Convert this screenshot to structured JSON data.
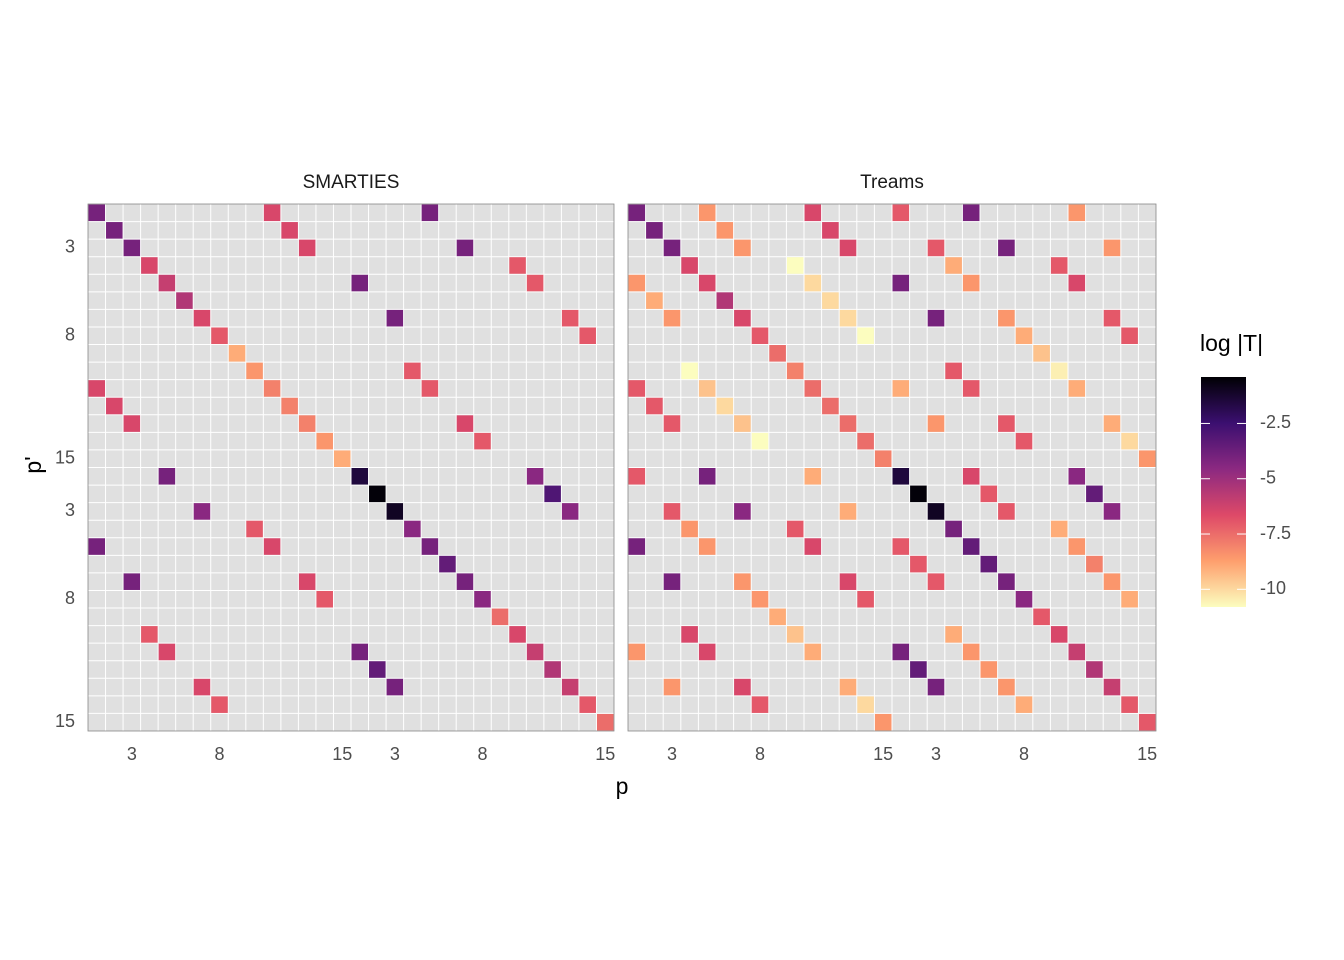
{
  "chart_data": {
    "type": "heatmap",
    "xlabel": "p",
    "ylabel": "p'",
    "legend_title": "log |T|",
    "categories": [
      null,
      null,
      "3",
      null,
      null,
      null,
      null,
      "8",
      null,
      null,
      null,
      null,
      null,
      null,
      "15",
      null,
      null,
      "3",
      null,
      null,
      null,
      null,
      "8",
      null,
      null,
      null,
      null,
      null,
      null,
      "15"
    ],
    "colormap": [
      "#fcfdbf",
      "#fe9f6d",
      "#de4968",
      "#8c2981",
      "#3b0f70",
      "#000004"
    ],
    "clim": [
      -10.8,
      -0.4
    ],
    "cticks": [
      -2.5,
      -5.0,
      -7.5,
      -10.0
    ],
    "panels": [
      {
        "title": "SMARTIES",
        "cells": [
          [
            1,
            1,
            -4
          ],
          [
            1,
            11,
            -6.5
          ],
          [
            1,
            20,
            -4
          ],
          [
            2,
            2,
            -4
          ],
          [
            2,
            12,
            -6.5
          ],
          [
            3,
            3,
            -4
          ],
          [
            3,
            13,
            -6.5
          ],
          [
            3,
            22,
            -4
          ],
          [
            4,
            4,
            -6.5
          ],
          [
            4,
            25,
            -7
          ],
          [
            5,
            5,
            -6
          ],
          [
            5,
            16,
            -4
          ],
          [
            5,
            26,
            -7
          ],
          [
            6,
            6,
            -5.5
          ],
          [
            7,
            7,
            -6.5
          ],
          [
            7,
            18,
            -4
          ],
          [
            7,
            28,
            -7
          ],
          [
            8,
            8,
            -7
          ],
          [
            8,
            29,
            -7
          ],
          [
            9,
            9,
            -9
          ],
          [
            10,
            10,
            -8.5
          ],
          [
            10,
            19,
            -7
          ],
          [
            11,
            1,
            -6.5
          ],
          [
            11,
            11,
            -8
          ],
          [
            11,
            20,
            -7
          ],
          [
            12,
            2,
            -6.5
          ],
          [
            12,
            12,
            -8
          ],
          [
            13,
            3,
            -6.5
          ],
          [
            13,
            13,
            -8
          ],
          [
            13,
            22,
            -6.5
          ],
          [
            14,
            14,
            -8.5
          ],
          [
            14,
            23,
            -7
          ],
          [
            15,
            15,
            -9
          ],
          [
            16,
            5,
            -4
          ],
          [
            16,
            16,
            -1.5
          ],
          [
            16,
            26,
            -4.5
          ],
          [
            17,
            17,
            -0.5
          ],
          [
            17,
            27,
            -3
          ],
          [
            18,
            7,
            -4.5
          ],
          [
            18,
            18,
            -1
          ],
          [
            18,
            28,
            -4.5
          ],
          [
            19,
            10,
            -7
          ],
          [
            19,
            19,
            -4.5
          ],
          [
            20,
            1,
            -4
          ],
          [
            20,
            11,
            -6.5
          ],
          [
            20,
            20,
            -4
          ],
          [
            21,
            21,
            -3.5
          ],
          [
            22,
            3,
            -4
          ],
          [
            22,
            13,
            -6.5
          ],
          [
            22,
            22,
            -4
          ],
          [
            23,
            14,
            -7
          ],
          [
            23,
            23,
            -4.5
          ],
          [
            24,
            24,
            -7.5
          ],
          [
            25,
            4,
            -7
          ],
          [
            25,
            25,
            -6.5
          ],
          [
            26,
            5,
            -6.5
          ],
          [
            26,
            16,
            -4
          ],
          [
            26,
            26,
            -6
          ],
          [
            27,
            17,
            -3.5
          ],
          [
            27,
            27,
            -5.5
          ],
          [
            28,
            7,
            -6.5
          ],
          [
            28,
            18,
            -4
          ],
          [
            28,
            28,
            -6
          ],
          [
            29,
            8,
            -7
          ],
          [
            29,
            29,
            -7
          ],
          [
            30,
            30,
            -7.5
          ]
        ]
      },
      {
        "title": "Treams",
        "cells": [
          [
            1,
            1,
            -4
          ],
          [
            1,
            5,
            -8.5
          ],
          [
            1,
            11,
            -6.5
          ],
          [
            1,
            16,
            -7
          ],
          [
            1,
            20,
            -4
          ],
          [
            1,
            26,
            -8.5
          ],
          [
            2,
            2,
            -4
          ],
          [
            2,
            6,
            -8.5
          ],
          [
            2,
            12,
            -6.5
          ],
          [
            3,
            3,
            -4
          ],
          [
            3,
            7,
            -8.5
          ],
          [
            3,
            13,
            -6.5
          ],
          [
            3,
            18,
            -7
          ],
          [
            3,
            22,
            -4
          ],
          [
            3,
            28,
            -8.5
          ],
          [
            4,
            4,
            -6.5
          ],
          [
            4,
            10,
            -10.8
          ],
          [
            4,
            19,
            -9
          ],
          [
            4,
            25,
            -7
          ],
          [
            5,
            1,
            -8.5
          ],
          [
            5,
            5,
            -6.5
          ],
          [
            5,
            11,
            -10
          ],
          [
            5,
            16,
            -4
          ],
          [
            5,
            20,
            -8.5
          ],
          [
            5,
            26,
            -6.5
          ],
          [
            6,
            2,
            -9
          ],
          [
            6,
            6,
            -5.5
          ],
          [
            6,
            12,
            -10
          ],
          [
            7,
            3,
            -8.5
          ],
          [
            7,
            7,
            -6.5
          ],
          [
            7,
            13,
            -10
          ],
          [
            7,
            18,
            -4
          ],
          [
            7,
            22,
            -8.5
          ],
          [
            7,
            28,
            -7
          ],
          [
            8,
            8,
            -7
          ],
          [
            8,
            14,
            -10.8
          ],
          [
            8,
            23,
            -9
          ],
          [
            8,
            29,
            -7
          ],
          [
            9,
            9,
            -7.5
          ],
          [
            9,
            24,
            -9.5
          ],
          [
            10,
            4,
            -10.8
          ],
          [
            10,
            10,
            -8
          ],
          [
            10,
            19,
            -7
          ],
          [
            10,
            25,
            -10.5
          ],
          [
            11,
            1,
            -7
          ],
          [
            11,
            5,
            -9.5
          ],
          [
            11,
            11,
            -7.5
          ],
          [
            11,
            16,
            -9
          ],
          [
            11,
            20,
            -7
          ],
          [
            11,
            26,
            -9
          ],
          [
            12,
            2,
            -7
          ],
          [
            12,
            6,
            -10
          ],
          [
            12,
            12,
            -7.5
          ],
          [
            13,
            3,
            -7
          ],
          [
            13,
            7,
            -9.5
          ],
          [
            13,
            13,
            -7.5
          ],
          [
            13,
            18,
            -8.5
          ],
          [
            13,
            22,
            -7
          ],
          [
            13,
            28,
            -9
          ],
          [
            14,
            8,
            -10.8
          ],
          [
            14,
            14,
            -7.5
          ],
          [
            14,
            23,
            -7
          ],
          [
            14,
            29,
            -10
          ],
          [
            15,
            15,
            -8
          ],
          [
            15,
            30,
            -8.5
          ],
          [
            16,
            1,
            -7
          ],
          [
            16,
            5,
            -4
          ],
          [
            16,
            11,
            -9
          ],
          [
            16,
            16,
            -1.5
          ],
          [
            16,
            20,
            -6.5
          ],
          [
            16,
            26,
            -4.5
          ],
          [
            17,
            17,
            -0.5
          ],
          [
            17,
            21,
            -7
          ],
          [
            17,
            27,
            -3.5
          ],
          [
            18,
            3,
            -7
          ],
          [
            18,
            7,
            -4.5
          ],
          [
            18,
            13,
            -9
          ],
          [
            18,
            18,
            -1
          ],
          [
            18,
            22,
            -7
          ],
          [
            18,
            28,
            -4.5
          ],
          [
            19,
            4,
            -8.5
          ],
          [
            19,
            10,
            -7
          ],
          [
            19,
            19,
            -4
          ],
          [
            19,
            25,
            -9
          ],
          [
            20,
            1,
            -4
          ],
          [
            20,
            5,
            -8.5
          ],
          [
            20,
            11,
            -6.5
          ],
          [
            20,
            16,
            -7
          ],
          [
            20,
            20,
            -3.5
          ],
          [
            20,
            26,
            -8.5
          ],
          [
            21,
            17,
            -7
          ],
          [
            21,
            21,
            -3.5
          ],
          [
            21,
            27,
            -8
          ],
          [
            22,
            3,
            -4
          ],
          [
            22,
            7,
            -8.5
          ],
          [
            22,
            13,
            -6.5
          ],
          [
            22,
            18,
            -7
          ],
          [
            22,
            22,
            -4
          ],
          [
            22,
            28,
            -8.5
          ],
          [
            23,
            8,
            -8.5
          ],
          [
            23,
            14,
            -7
          ],
          [
            23,
            23,
            -4.5
          ],
          [
            23,
            29,
            -9
          ],
          [
            24,
            9,
            -9
          ],
          [
            24,
            24,
            -7
          ],
          [
            25,
            4,
            -6.5
          ],
          [
            25,
            10,
            -9.5
          ],
          [
            25,
            19,
            -9
          ],
          [
            25,
            25,
            -6.5
          ],
          [
            26,
            1,
            -8.5
          ],
          [
            26,
            5,
            -6.5
          ],
          [
            26,
            11,
            -9
          ],
          [
            26,
            16,
            -4
          ],
          [
            26,
            20,
            -8.5
          ],
          [
            26,
            26,
            -6
          ],
          [
            27,
            17,
            -3.5
          ],
          [
            27,
            21,
            -8.5
          ],
          [
            27,
            27,
            -5.5
          ],
          [
            28,
            3,
            -8.5
          ],
          [
            28,
            7,
            -6.5
          ],
          [
            28,
            13,
            -9
          ],
          [
            28,
            18,
            -4
          ],
          [
            28,
            22,
            -8.5
          ],
          [
            28,
            28,
            -6
          ],
          [
            29,
            8,
            -7
          ],
          [
            29,
            14,
            -10
          ],
          [
            29,
            23,
            -9
          ],
          [
            29,
            29,
            -7
          ],
          [
            30,
            15,
            -8.5
          ],
          [
            30,
            30,
            -7
          ]
        ]
      }
    ]
  }
}
